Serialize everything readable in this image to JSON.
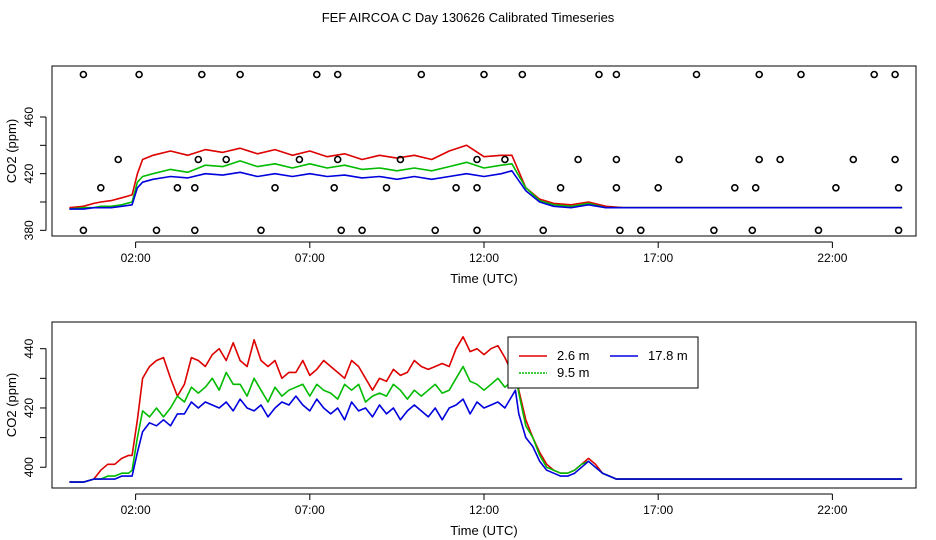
{
  "title": "FEF AIRCOA C  Day 130626  Calibrated Timeseries",
  "chart_data": [
    {
      "type": "line",
      "xlabel": "Time (UTC)",
      "ylabel": "CO2 (ppm)",
      "xlim": [
        -0.4,
        24.4
      ],
      "ylim": [
        376,
        496
      ],
      "xticks": [
        2,
        7,
        12,
        17,
        22
      ],
      "xtick_labels": [
        "02:00",
        "07:00",
        "12:00",
        "17:00",
        "22:00"
      ],
      "yticks": [
        380,
        420,
        460
      ],
      "yticks_minor": [
        400,
        440
      ],
      "ytick_labels": [
        "380",
        "420",
        "460"
      ],
      "grid": false,
      "colors": {
        "s26": "#dd0000",
        "s95": "#00bb00",
        "s178": "#0000dd",
        "points": "#000000"
      },
      "lines": [
        {
          "name": "2.6 m",
          "color": "#dd0000",
          "x": [
            0.1,
            0.5,
            0.8,
            1.0,
            1.3,
            1.6,
            1.9,
            2.05,
            2.2,
            2.5,
            3.0,
            3.5,
            4.0,
            4.5,
            5.0,
            5.5,
            6.0,
            6.5,
            7.0,
            7.5,
            8.0,
            8.5,
            9.0,
            9.5,
            10.0,
            10.5,
            11.0,
            11.5,
            12.0,
            12.5,
            12.8,
            13.2,
            13.6,
            14.0,
            14.5,
            15.0,
            15.5,
            16.0,
            17.0,
            18.0,
            19.0,
            20.0,
            21.0,
            22.0,
            23.0,
            24.0
          ],
          "y": [
            396,
            397,
            399,
            400,
            401,
            403,
            405,
            420,
            430,
            433,
            436,
            433,
            437,
            435,
            438,
            434,
            437,
            433,
            436,
            432,
            434,
            430,
            433,
            431,
            433,
            430,
            436,
            440,
            432,
            433,
            433,
            410,
            402,
            399,
            398,
            400,
            397,
            396,
            396,
            396,
            396,
            396,
            396,
            396,
            396,
            396
          ]
        },
        {
          "name": "9.5 m",
          "color": "#00bb00",
          "x": [
            0.1,
            0.5,
            0.8,
            1.0,
            1.3,
            1.6,
            1.9,
            2.05,
            2.2,
            2.5,
            3.0,
            3.5,
            4.0,
            4.5,
            5.0,
            5.5,
            6.0,
            6.5,
            7.0,
            7.5,
            8.0,
            8.5,
            9.0,
            9.5,
            10.0,
            10.5,
            11.0,
            11.5,
            12.0,
            12.5,
            12.8,
            13.2,
            13.6,
            14.0,
            14.5,
            15.0,
            15.5,
            16.0,
            17.0,
            18.0,
            19.0,
            20.0,
            21.0,
            22.0,
            23.0,
            24.0
          ],
          "y": [
            395,
            396,
            396,
            397,
            397,
            398,
            400,
            414,
            418,
            420,
            423,
            421,
            426,
            425,
            429,
            425,
            427,
            424,
            427,
            424,
            426,
            423,
            424,
            422,
            424,
            422,
            425,
            428,
            424,
            426,
            427,
            410,
            401,
            398,
            397,
            399,
            396,
            396,
            396,
            396,
            396,
            396,
            396,
            396,
            396,
            396
          ]
        },
        {
          "name": "17.8 m",
          "color": "#0000dd",
          "x": [
            0.1,
            0.5,
            0.8,
            1.0,
            1.3,
            1.6,
            1.9,
            2.05,
            2.2,
            2.5,
            3.0,
            3.5,
            4.0,
            4.5,
            5.0,
            5.5,
            6.0,
            6.5,
            7.0,
            7.5,
            8.0,
            8.5,
            9.0,
            9.5,
            10.0,
            10.5,
            11.0,
            11.5,
            12.0,
            12.5,
            12.8,
            13.2,
            13.6,
            14.0,
            14.5,
            15.0,
            15.5,
            16.0,
            17.0,
            18.0,
            19.0,
            20.0,
            21.0,
            22.0,
            23.0,
            24.0
          ],
          "y": [
            395,
            395,
            396,
            396,
            396,
            397,
            398,
            410,
            414,
            416,
            418,
            417,
            420,
            419,
            421,
            418,
            420,
            418,
            420,
            418,
            419,
            417,
            418,
            416,
            418,
            416,
            418,
            420,
            418,
            420,
            422,
            408,
            400,
            397,
            396,
            398,
            396,
            396,
            396,
            396,
            396,
            396,
            396,
            396,
            396,
            396
          ]
        }
      ],
      "points": {
        "x": [
          0.5,
          2.1,
          3.9,
          5.0,
          7.2,
          7.8,
          10.2,
          12.0,
          13.1,
          15.3,
          15.8,
          18.1,
          19.9,
          21.1,
          23.2,
          23.8,
          0.5,
          2.6,
          3.7,
          5.6,
          7.9,
          8.5,
          10.6,
          11.8,
          13.7,
          15.9,
          16.5,
          18.6,
          19.7,
          21.6,
          23.9,
          1.0,
          3.2,
          3.7,
          6.0,
          7.7,
          9.2,
          11.2,
          11.8,
          14.2,
          15.8,
          17.0,
          19.2,
          19.8,
          22.1,
          23.9,
          1.5,
          3.8,
          4.6,
          6.7,
          7.8,
          9.6,
          11.8,
          12.6,
          14.7,
          15.8,
          17.6,
          19.9,
          20.5,
          22.6,
          23.8
        ],
        "y": [
          490,
          490,
          490,
          490,
          490,
          490,
          490,
          490,
          490,
          490,
          490,
          490,
          490,
          490,
          490,
          490,
          380,
          380,
          380,
          380,
          380,
          380,
          380,
          380,
          380,
          380,
          380,
          380,
          380,
          380,
          380,
          410,
          410,
          410,
          410,
          410,
          410,
          410,
          410,
          410,
          410,
          410,
          410,
          410,
          410,
          410,
          430,
          430,
          430,
          430,
          430,
          430,
          430,
          430,
          430,
          430,
          430,
          430,
          430,
          430,
          430
        ]
      }
    },
    {
      "type": "line",
      "xlabel": "Time (UTC)",
      "ylabel": "CO2 (ppm)",
      "xlim": [
        -0.4,
        24.4
      ],
      "ylim": [
        393,
        449
      ],
      "xticks": [
        2,
        7,
        12,
        17,
        22
      ],
      "xtick_labels": [
        "02:00",
        "07:00",
        "12:00",
        "17:00",
        "22:00"
      ],
      "yticks": [
        400,
        420,
        440
      ],
      "yticks_minor": [
        410,
        430
      ],
      "ytick_labels": [
        "400",
        "420",
        "440"
      ],
      "grid": false,
      "legend": "top-right",
      "series": [
        {
          "name": "2.6 m",
          "color": "#dd0000",
          "x": [
            0.1,
            0.5,
            0.8,
            1.0,
            1.2,
            1.4,
            1.6,
            1.8,
            1.9,
            2.05,
            2.2,
            2.4,
            2.6,
            2.8,
            3.0,
            3.2,
            3.4,
            3.6,
            3.8,
            4.0,
            4.2,
            4.4,
            4.6,
            4.8,
            5.0,
            5.2,
            5.4,
            5.6,
            5.8,
            6.0,
            6.2,
            6.4,
            6.6,
            6.8,
            7.0,
            7.2,
            7.4,
            7.6,
            7.8,
            8.0,
            8.2,
            8.4,
            8.6,
            8.8,
            9.0,
            9.2,
            9.4,
            9.6,
            9.8,
            10.0,
            10.2,
            10.4,
            10.6,
            10.8,
            11.0,
            11.2,
            11.4,
            11.6,
            11.8,
            12.0,
            12.2,
            12.4,
            12.6,
            12.8,
            12.9,
            13.0,
            13.2,
            13.4,
            13.6,
            13.8,
            14.0,
            14.2,
            14.4,
            14.6,
            14.8,
            15.0,
            15.2,
            15.4,
            15.6,
            15.8,
            16.0,
            16.5,
            17.0,
            17.5,
            18.0,
            18.5,
            19.0,
            19.5,
            20.0,
            20.5,
            21.0,
            21.5,
            22.0,
            22.5,
            23.0,
            23.5,
            24.0
          ],
          "y": [
            395,
            395,
            396,
            399,
            401,
            401,
            403,
            404,
            404,
            416,
            430,
            434,
            436,
            437,
            430,
            424,
            428,
            437,
            436,
            434,
            438,
            440,
            436,
            442,
            436,
            434,
            443,
            436,
            434,
            436,
            430,
            432,
            432,
            436,
            431,
            433,
            436,
            434,
            432,
            430,
            436,
            434,
            430,
            426,
            430,
            429,
            433,
            431,
            432,
            436,
            434,
            433,
            434,
            435,
            434,
            440,
            444,
            439,
            440,
            438,
            440,
            441,
            437,
            432,
            433,
            426,
            416,
            410,
            405,
            401,
            399,
            398,
            398,
            399,
            401,
            403,
            401,
            398,
            397,
            396,
            396,
            396,
            396,
            396,
            396,
            396,
            396,
            396,
            396,
            396,
            396,
            396,
            396,
            396,
            396,
            396,
            396
          ]
        },
        {
          "name": "9.5 m",
          "color": "#00bb00",
          "x": [
            0.1,
            0.5,
            0.8,
            1.0,
            1.2,
            1.4,
            1.6,
            1.8,
            1.9,
            2.05,
            2.2,
            2.4,
            2.6,
            2.8,
            3.0,
            3.2,
            3.4,
            3.6,
            3.8,
            4.0,
            4.2,
            4.4,
            4.6,
            4.8,
            5.0,
            5.2,
            5.4,
            5.6,
            5.8,
            6.0,
            6.2,
            6.4,
            6.6,
            6.8,
            7.0,
            7.2,
            7.4,
            7.6,
            7.8,
            8.0,
            8.2,
            8.4,
            8.6,
            8.8,
            9.0,
            9.2,
            9.4,
            9.6,
            9.8,
            10.0,
            10.2,
            10.4,
            10.6,
            10.8,
            11.0,
            11.2,
            11.4,
            11.6,
            11.8,
            12.0,
            12.2,
            12.4,
            12.6,
            12.8,
            12.9,
            13.0,
            13.2,
            13.4,
            13.6,
            13.8,
            14.0,
            14.2,
            14.4,
            14.6,
            14.8,
            15.0,
            15.2,
            15.4,
            15.6,
            15.8,
            16.0,
            16.5,
            17.0,
            17.5,
            18.0,
            18.5,
            19.0,
            19.5,
            20.0,
            20.5,
            21.0,
            21.5,
            22.0,
            22.5,
            23.0,
            23.5,
            24.0
          ],
          "y": [
            395,
            395,
            396,
            396,
            397,
            397,
            398,
            398,
            399,
            410,
            419,
            417,
            420,
            417,
            420,
            424,
            422,
            427,
            425,
            427,
            430,
            426,
            432,
            428,
            428,
            424,
            430,
            426,
            422,
            427,
            424,
            426,
            427,
            428,
            424,
            428,
            426,
            425,
            423,
            428,
            426,
            428,
            422,
            424,
            425,
            424,
            428,
            426,
            423,
            426,
            424,
            426,
            428,
            425,
            426,
            430,
            434,
            429,
            428,
            426,
            428,
            430,
            427,
            429,
            432,
            425,
            414,
            410,
            404,
            400,
            399,
            398,
            398,
            399,
            401,
            402,
            400,
            398,
            397,
            396,
            396,
            396,
            396,
            396,
            396,
            396,
            396,
            396,
            396,
            396,
            396,
            396,
            396,
            396,
            396,
            396,
            396
          ]
        },
        {
          "name": "17.8 m",
          "color": "#0000dd",
          "x": [
            0.1,
            0.5,
            0.8,
            1.0,
            1.2,
            1.4,
            1.6,
            1.8,
            1.9,
            2.05,
            2.2,
            2.4,
            2.6,
            2.8,
            3.0,
            3.2,
            3.4,
            3.6,
            3.8,
            4.0,
            4.2,
            4.4,
            4.6,
            4.8,
            5.0,
            5.2,
            5.4,
            5.6,
            5.8,
            6.0,
            6.2,
            6.4,
            6.6,
            6.8,
            7.0,
            7.2,
            7.4,
            7.6,
            7.8,
            8.0,
            8.2,
            8.4,
            8.6,
            8.8,
            9.0,
            9.2,
            9.4,
            9.6,
            9.8,
            10.0,
            10.2,
            10.4,
            10.6,
            10.8,
            11.0,
            11.2,
            11.4,
            11.6,
            11.8,
            12.0,
            12.2,
            12.4,
            12.6,
            12.8,
            12.9,
            13.0,
            13.2,
            13.4,
            13.6,
            13.8,
            14.0,
            14.2,
            14.4,
            14.6,
            14.8,
            15.0,
            15.2,
            15.4,
            15.6,
            15.8,
            16.0,
            16.5,
            17.0,
            17.5,
            18.0,
            18.5,
            19.0,
            19.5,
            20.0,
            20.5,
            21.0,
            21.5,
            22.0,
            22.5,
            23.0,
            23.5,
            24.0
          ],
          "y": [
            395,
            395,
            396,
            396,
            396,
            396,
            397,
            397,
            397,
            405,
            412,
            415,
            414,
            416,
            414,
            418,
            418,
            422,
            420,
            422,
            421,
            420,
            422,
            419,
            423,
            420,
            419,
            421,
            417,
            420,
            422,
            421,
            424,
            421,
            419,
            423,
            420,
            418,
            420,
            416,
            422,
            419,
            420,
            417,
            421,
            418,
            420,
            416,
            419,
            421,
            419,
            417,
            420,
            416,
            420,
            421,
            423,
            418,
            422,
            420,
            421,
            422,
            420,
            424,
            426,
            418,
            410,
            407,
            402,
            399,
            398,
            397,
            397,
            398,
            400,
            402,
            400,
            398,
            397,
            396,
            396,
            396,
            396,
            396,
            396,
            396,
            396,
            396,
            396,
            396,
            396,
            396,
            396,
            396,
            396,
            396,
            396
          ]
        }
      ]
    }
  ]
}
